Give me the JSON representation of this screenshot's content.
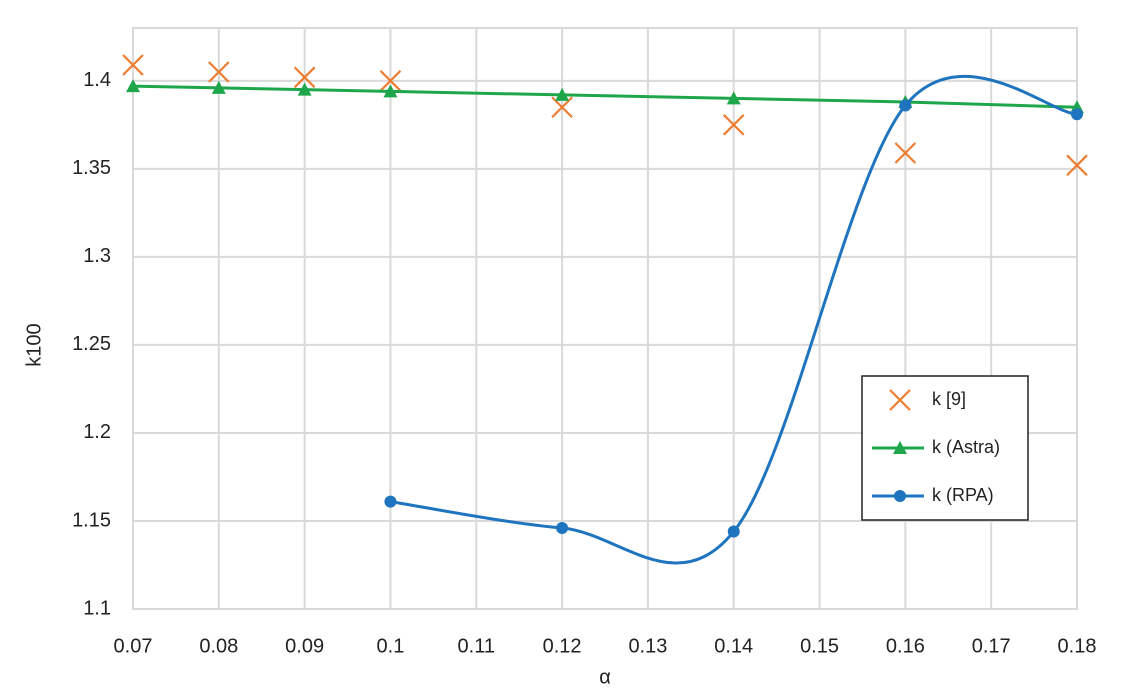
{
  "chart_data": {
    "type": "line",
    "x_label": "α",
    "y_label": "k100",
    "x": [
      0.07,
      0.08,
      0.09,
      0.1,
      0.12,
      0.14,
      0.16,
      0.18
    ],
    "series": [
      {
        "name": "k [9]",
        "color": "#ed7d31",
        "marker": "x",
        "line": false,
        "values": [
          1.409,
          1.405,
          1.402,
          1.4,
          1.385,
          1.375,
          1.359,
          1.352
        ]
      },
      {
        "name": "k (Astra)",
        "color": "#1ea64b",
        "marker": "triangle",
        "line": true,
        "smooth": false,
        "values": [
          1.397,
          1.396,
          1.395,
          1.394,
          1.392,
          1.39,
          1.388,
          1.385
        ]
      },
      {
        "name": "k (RPA)",
        "color": "#1f74bf",
        "marker": "circle",
        "line": true,
        "smooth": true,
        "values": [
          null,
          null,
          null,
          1.161,
          1.146,
          1.144,
          1.386,
          1.381
        ]
      }
    ],
    "xlim": [
      0.07,
      0.18
    ],
    "xticks": [
      0.07,
      0.08,
      0.09,
      0.1,
      0.11,
      0.12,
      0.13,
      0.14,
      0.15,
      0.16,
      0.17,
      0.18
    ],
    "ylim": [
      1.1,
      1.43
    ],
    "yticks": [
      1.1,
      1.15,
      1.2,
      1.25,
      1.3,
      1.35,
      1.4
    ],
    "grid": true,
    "legend_position": "right"
  }
}
